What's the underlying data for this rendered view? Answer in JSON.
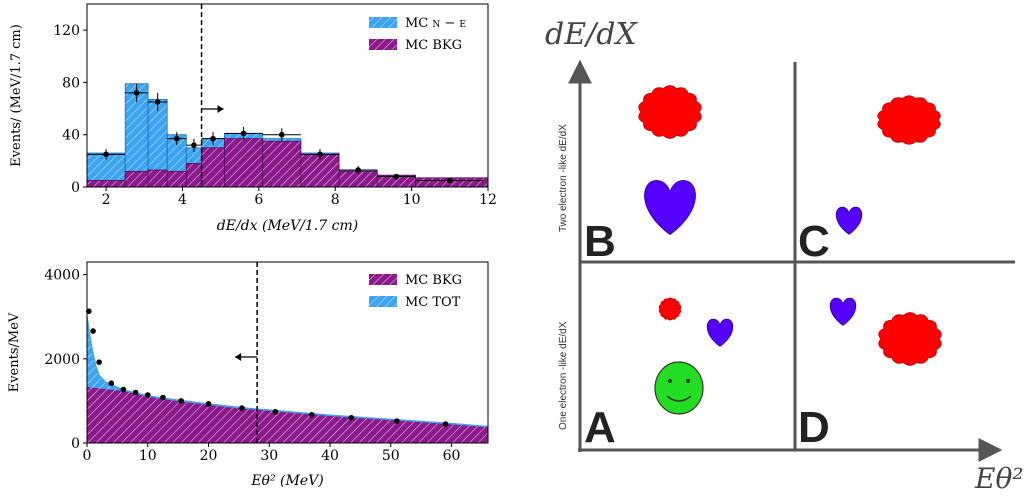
{
  "colors": {
    "bkg_fill": "#8a1a8a",
    "bkg_hatch": "#e9b3e9",
    "tot_fill": "#3aa3f2",
    "tot_hatch": "#bfe2fb",
    "data_point": "#000000",
    "red_blob": "#ff0000",
    "purple_heart": "#5500ff",
    "green_face": "#22dd22"
  },
  "chart_data": [
    {
      "type": "bar",
      "xlabel": "dE/dx (MeV/1.7 cm)",
      "ylabel": "Events/ (MeV/1.7 cm)",
      "xlim": [
        1.5,
        12
      ],
      "ylim": [
        0,
        140
      ],
      "xticks": [
        "2",
        "4",
        "6",
        "8",
        "10",
        "12"
      ],
      "yticks": [
        "0",
        "40",
        "80",
        "120"
      ],
      "cut_line_x": 4.5,
      "cut_arrow": "right",
      "legend_position": "top-right",
      "legend": [
        "MC ν − e",
        "MC BKG"
      ],
      "series": [
        {
          "name": "MC ν − e",
          "bins": [
            [
              1.5,
              2.5,
              26
            ],
            [
              2.5,
              3.1,
              79
            ],
            [
              3.1,
              3.6,
              67
            ],
            [
              3.6,
              4.1,
              40
            ],
            [
              4.1,
              4.5,
              30
            ],
            [
              4.5,
              5.1,
              37
            ],
            [
              5.1,
              6.1,
              41
            ],
            [
              6.1,
              7.1,
              37
            ],
            [
              7.1,
              8.1,
              26
            ],
            [
              8.1,
              9.1,
              13
            ],
            [
              9.1,
              10.1,
              9
            ],
            [
              10.1,
              12,
              7
            ]
          ]
        },
        {
          "name": "MC BKG",
          "bins": [
            [
              1.5,
              2.5,
              5
            ],
            [
              2.5,
              3.1,
              12
            ],
            [
              3.1,
              3.6,
              13
            ],
            [
              3.6,
              4.1,
              12
            ],
            [
              4.1,
              4.5,
              18
            ],
            [
              4.5,
              5.1,
              30
            ],
            [
              5.1,
              6.1,
              37
            ],
            [
              6.1,
              7.1,
              35
            ],
            [
              7.1,
              8.1,
              25
            ],
            [
              8.1,
              9.1,
              12
            ],
            [
              9.1,
              10.1,
              9
            ],
            [
              10.1,
              12,
              7
            ]
          ]
        }
      ],
      "points": [
        {
          "x": 2.0,
          "y": 25,
          "xerr": 0.5,
          "yerr": 4
        },
        {
          "x": 2.8,
          "y": 72,
          "xerr": 0.3,
          "yerr": 7
        },
        {
          "x": 3.35,
          "y": 65,
          "xerr": 0.25,
          "yerr": 7
        },
        {
          "x": 3.85,
          "y": 37,
          "xerr": 0.25,
          "yerr": 5
        },
        {
          "x": 4.3,
          "y": 32,
          "xerr": 0.2,
          "yerr": 5
        },
        {
          "x": 4.8,
          "y": 37,
          "xerr": 0.3,
          "yerr": 5
        },
        {
          "x": 5.6,
          "y": 41,
          "xerr": 0.5,
          "yerr": 5
        },
        {
          "x": 6.6,
          "y": 40,
          "xerr": 0.5,
          "yerr": 5
        },
        {
          "x": 7.6,
          "y": 25,
          "xerr": 0.5,
          "yerr": 4
        },
        {
          "x": 8.6,
          "y": 13,
          "xerr": 0.5,
          "yerr": 3
        },
        {
          "x": 9.6,
          "y": 8,
          "xerr": 0.5,
          "yerr": 2
        },
        {
          "x": 11.0,
          "y": 5,
          "xerr": 0.9,
          "yerr": 2
        }
      ]
    },
    {
      "type": "area",
      "xlabel": "Eθ² (MeV)",
      "ylabel": "Events/MeV",
      "xlim": [
        0,
        66
      ],
      "ylim": [
        0,
        4300
      ],
      "xticks": [
        "0",
        "10",
        "20",
        "30",
        "40",
        "50",
        "60"
      ],
      "yticks": [
        "0",
        "2000",
        "4000"
      ],
      "cut_line_x": 28,
      "cut_arrow": "left",
      "legend_position": "top-right",
      "legend": [
        "MC BKG",
        "MC TOT"
      ],
      "series": [
        {
          "name": "MC TOT",
          "x": [
            0,
            0.5,
            1,
            1.5,
            2,
            3,
            4,
            5,
            7,
            10,
            15,
            20,
            25,
            30,
            35,
            40,
            45,
            50,
            55,
            60,
            66
          ],
          "y": [
            3000,
            2500,
            2100,
            1800,
            1600,
            1450,
            1380,
            1320,
            1220,
            1120,
            1010,
            920,
            840,
            780,
            720,
            660,
            610,
            560,
            510,
            460,
            390
          ]
        },
        {
          "name": "MC BKG",
          "x": [
            0,
            5,
            10,
            15,
            20,
            25,
            30,
            35,
            40,
            45,
            50,
            55,
            60,
            66
          ],
          "y": [
            1330,
            1250,
            1130,
            1030,
            940,
            860,
            780,
            720,
            660,
            610,
            560,
            510,
            460,
            390
          ]
        }
      ],
      "points": [
        {
          "x": 0.3,
          "y": 3130
        },
        {
          "x": 1.0,
          "y": 2660
        },
        {
          "x": 2.0,
          "y": 1920
        },
        {
          "x": 4.0,
          "y": 1420
        },
        {
          "x": 6.0,
          "y": 1270
        },
        {
          "x": 8.0,
          "y": 1200
        },
        {
          "x": 10.0,
          "y": 1140
        },
        {
          "x": 12.5,
          "y": 1080
        },
        {
          "x": 15.5,
          "y": 1000
        },
        {
          "x": 20.0,
          "y": 930
        },
        {
          "x": 25.5,
          "y": 830
        },
        {
          "x": 31.0,
          "y": 740
        },
        {
          "x": 37.0,
          "y": 670
        },
        {
          "x": 43.5,
          "y": 600
        },
        {
          "x": 51.0,
          "y": 520
        },
        {
          "x": 59.0,
          "y": 450
        }
      ]
    }
  ],
  "diagram": {
    "y_axis_label": "dE/dX",
    "x_axis_label": "Eθ²",
    "upper_side_label": "Two electron -like dE/dX",
    "lower_side_label": "One electron -like dE/dX",
    "quadrants": [
      "A",
      "B",
      "C",
      "D"
    ]
  }
}
